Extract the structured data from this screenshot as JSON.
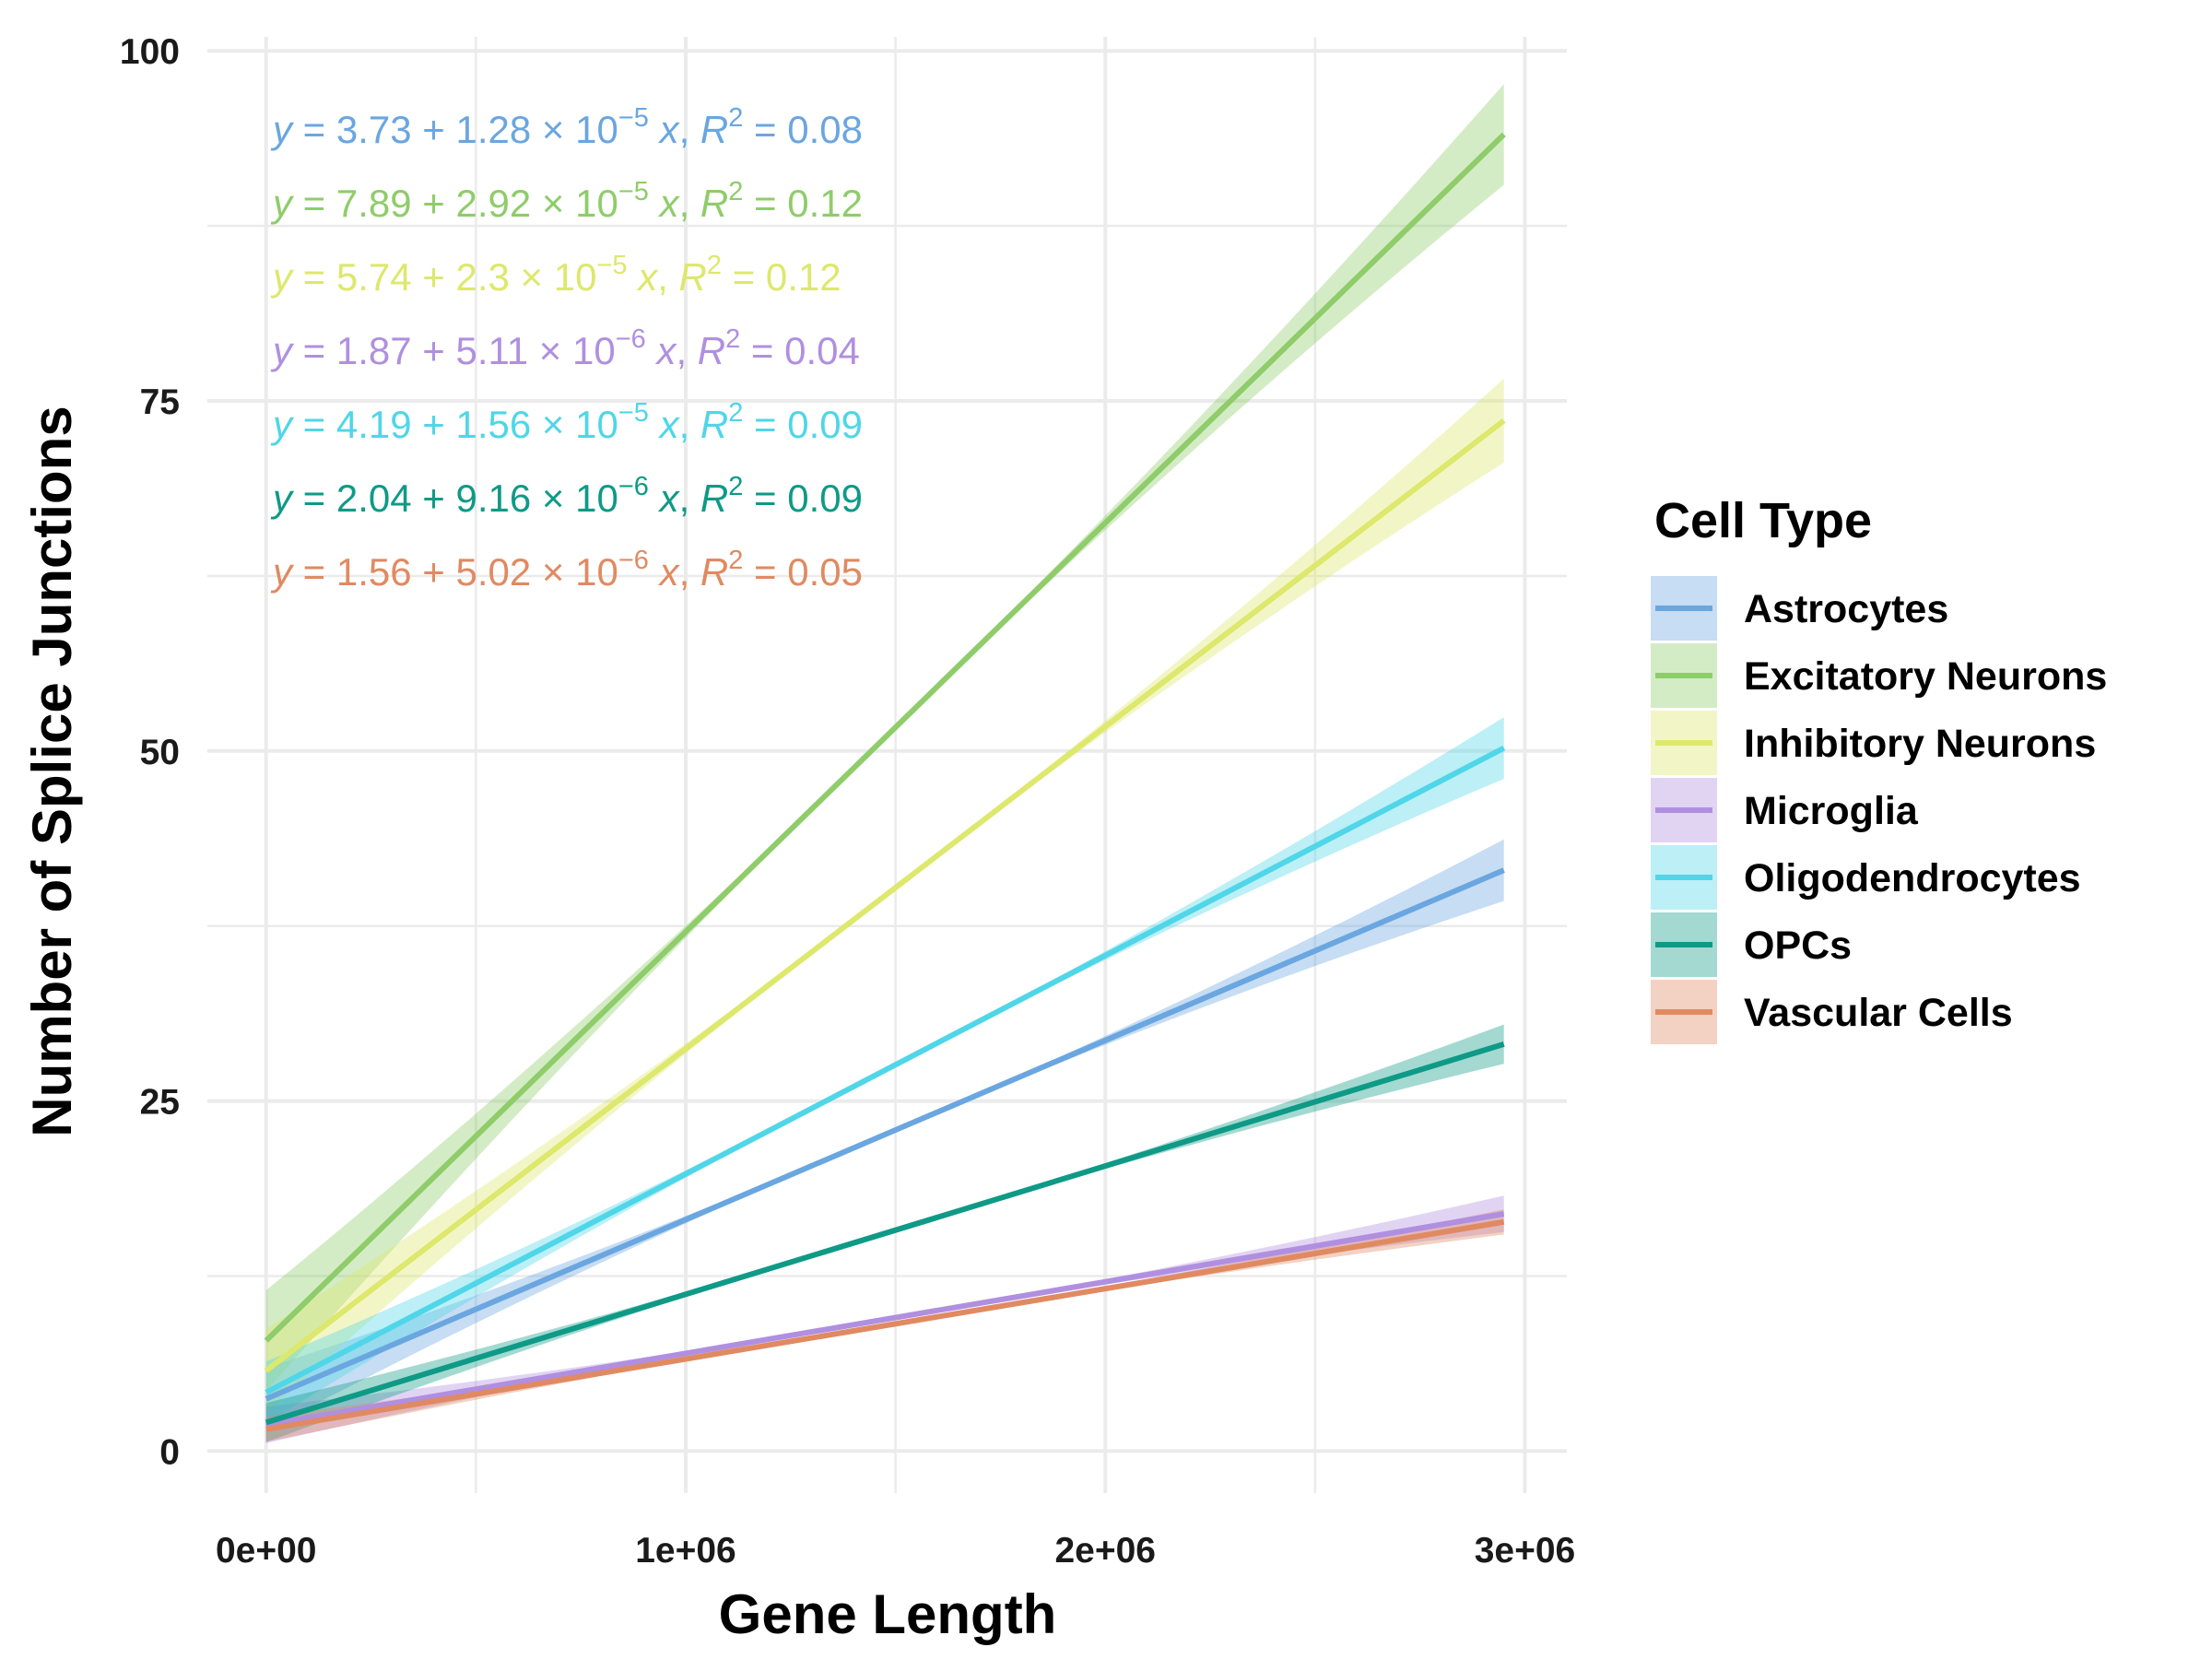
{
  "chart_data": {
    "type": "line",
    "xlabel": "Gene Length",
    "ylabel": "Number of Splice Junctions",
    "xlim": [
      -140000,
      3100000
    ],
    "ylim": [
      -3,
      101
    ],
    "x_ticks": [
      0,
      1000000,
      2000000,
      3000000
    ],
    "x_tick_labels": [
      "0e+00",
      "1e+06",
      "2e+06",
      "3e+06"
    ],
    "y_ticks": [
      0,
      25,
      50,
      75,
      100
    ],
    "y_tick_labels": [
      "0",
      "25",
      "50",
      "75",
      "100"
    ],
    "grid": true,
    "legend": {
      "title": "Cell Type",
      "position": "right"
    },
    "x_range": [
      0,
      2950000
    ],
    "series": [
      {
        "name": "Astrocytes",
        "color": "#6aa6e0",
        "intercept": 3.73,
        "slope": 1.28e-05,
        "ci_end": 2.2,
        "equation": {
          "a": "3.73",
          "b": "1.28",
          "exp": "−5",
          "r2": "0.08"
        }
      },
      {
        "name": "Excitatory Neurons",
        "color": "#8fcc6a",
        "intercept": 7.89,
        "slope": 2.92e-05,
        "ci_end": 3.6,
        "equation": {
          "a": "7.89",
          "b": "2.92",
          "exp": "−5",
          "r2": "0.12"
        }
      },
      {
        "name": "Inhibitory Neurons",
        "color": "#dde86c",
        "intercept": 5.74,
        "slope": 2.3e-05,
        "ci_end": 3.0,
        "equation": {
          "a": "5.74",
          "b": "2.3",
          "exp": "−5",
          "r2": "0.12"
        }
      },
      {
        "name": "Microglia",
        "color": "#b08fe0",
        "intercept": 1.87,
        "slope": 5.11e-06,
        "ci_end": 1.3,
        "equation": {
          "a": "1.87",
          "b": "5.11",
          "exp": "−6",
          "r2": "0.04"
        }
      },
      {
        "name": "Oligodendrocytes",
        "color": "#4fd6e8",
        "intercept": 4.19,
        "slope": 1.56e-05,
        "ci_end": 2.2,
        "equation": {
          "a": "4.19",
          "b": "1.56",
          "exp": "−5",
          "r2": "0.09"
        }
      },
      {
        "name": "OPCs",
        "color": "#0e9a86",
        "intercept": 2.04,
        "slope": 9.16e-06,
        "ci_end": 1.4,
        "equation": {
          "a": "2.04",
          "b": "9.16",
          "exp": "−6",
          "r2": "0.09"
        }
      },
      {
        "name": "Vascular Cells",
        "color": "#e08a62",
        "intercept": 1.56,
        "slope": 5.02e-06,
        "ci_end": 0.9,
        "equation": {
          "a": "1.56",
          "b": "5.02",
          "exp": "−6",
          "r2": "0.05"
        }
      }
    ]
  }
}
